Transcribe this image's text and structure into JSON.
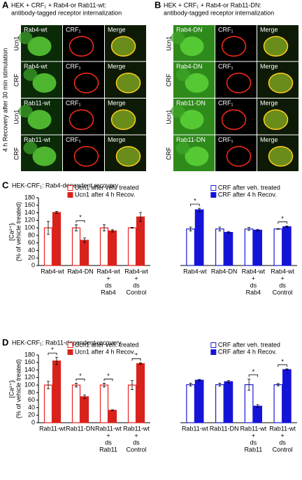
{
  "panels": [
    {
      "label": "A",
      "title": [
        "HEK + CRF₁ + Rab4-or Rab11-wt:",
        "antibody-tagged receptor internalization"
      ],
      "side_label": "4 h Recovery after 30 min stimulation",
      "rows": [
        {
          "group": "Ucn1",
          "channels": [
            "Rab4-wt",
            "CRF₁",
            "Merge"
          ]
        },
        {
          "group": "CRF",
          "channels": [
            "Rab4-wt",
            "CRF₁",
            "Merge"
          ]
        },
        {
          "group": "Ucn1",
          "channels": [
            "Rab11-wt",
            "CRF₁",
            "Merge"
          ]
        },
        {
          "group": "CRF",
          "channels": [
            "Rab11-wt",
            "CRF₁",
            "Merge"
          ]
        }
      ]
    },
    {
      "label": "B",
      "title": [
        "HEK + CRF₁ + Rab4-or Rab11-DN:",
        "antibody-tagged receptor internalization"
      ],
      "rows": [
        {
          "group": "Ucn1",
          "channels": [
            "Rab4-DN",
            "CRF₁",
            "Merge"
          ]
        },
        {
          "group": "CRF",
          "channels": [
            "Rab4-DN",
            "CRF₁",
            "Merge"
          ]
        },
        {
          "group": "Ucn1",
          "channels": [
            "Rab11-DN",
            "CRF₁",
            "Merge"
          ]
        },
        {
          "group": "CRF",
          "channels": [
            "Rab11-DN",
            "CRF₁",
            "Merge"
          ]
        }
      ]
    }
  ],
  "chart_panels": [
    {
      "label": "C",
      "title": "HEK-CRF₁: Rab4-dependent recovery"
    },
    {
      "label": "D",
      "title": "HEK-CRF₁: Rab11-dependent recovery"
    }
  ],
  "chart_data": [
    {
      "type": "bar",
      "ylabel": [
        "[Ca²⁺]ᵢ",
        "(% of vehicle treated)"
      ],
      "ylim": [
        0,
        180
      ],
      "yticks": [
        0,
        20,
        40,
        60,
        80,
        100,
        120,
        140,
        160,
        180
      ],
      "categories": [
        "Rab4-wt",
        "Rab4-DN",
        [
          "Rab4-wt",
          "+",
          "ds",
          "Rab4"
        ],
        [
          "Rab4-wt",
          "+",
          "ds",
          "Control"
        ]
      ],
      "series": [
        {
          "name": "Ucn1 after veh. treated",
          "color": "#e8221f",
          "style": "open",
          "values": [
            100,
            100,
            100,
            100
          ],
          "errors": [
            17,
            8,
            8,
            1
          ]
        },
        {
          "name": "Ucn1 after 4 h Recov.",
          "color": "#d8231c",
          "style": "solid",
          "values": [
            141,
            67,
            92,
            129
          ],
          "errors": [
            3,
            6,
            3,
            12
          ]
        }
      ],
      "significance": [
        null,
        "*",
        null,
        null
      ]
    },
    {
      "type": "bar",
      "ylim": [
        0,
        180
      ],
      "categories": [
        "Rab4-wt",
        "Rab4-DN",
        [
          "Rab4-wt",
          "+",
          "ds",
          "Rab4"
        ],
        [
          "Rab4-wt",
          "+",
          "ds",
          "Control"
        ]
      ],
      "series": [
        {
          "name": "CRF after veh. treated",
          "color": "#1a1adc",
          "style": "open",
          "values": [
            97,
            97,
            97,
            97
          ],
          "errors": [
            5,
            5,
            4,
            1
          ]
        },
        {
          "name": "CRF after 4 h Recov.",
          "color": "#1414d8",
          "style": "solid",
          "values": [
            148,
            88,
            94,
            103
          ],
          "errors": [
            4,
            2,
            2,
            2
          ]
        }
      ],
      "significance": [
        "*",
        null,
        null,
        "*"
      ]
    },
    {
      "type": "bar",
      "ylabel": [
        "[Ca²⁺]ᵢ",
        "(% of vehicle treated)"
      ],
      "ylim": [
        0,
        180
      ],
      "yticks": [
        0,
        20,
        40,
        60,
        80,
        100,
        120,
        140,
        160,
        180
      ],
      "categories": [
        "Rab11-wt",
        "Rab11-DN",
        [
          "Rab11-wt",
          "+",
          "ds",
          "Rab11"
        ],
        [
          "Rab11-wt",
          "+",
          "ds",
          "Control"
        ]
      ],
      "series": [
        {
          "name": "Ucn1 after veh. treated",
          "color": "#e8221f",
          "style": "open",
          "values": [
            100,
            100,
            100,
            100
          ],
          "errors": [
            10,
            5,
            5,
            12
          ]
        },
        {
          "name": "Ucn1 after 4 h Recov.",
          "color": "#d8231c",
          "style": "solid",
          "values": [
            164,
            69,
            33,
            157
          ],
          "errors": [
            10,
            5,
            1,
            2
          ]
        }
      ],
      "significance": [
        "*",
        "*",
        "*",
        "*"
      ]
    },
    {
      "type": "bar",
      "ylim": [
        0,
        180
      ],
      "categories": [
        "Rab11-wt",
        "Rab11-DN",
        [
          "Rab11-wt",
          "+",
          "ds",
          "Rab11"
        ],
        [
          "Rab11-wt",
          "+",
          "ds",
          "Control"
        ]
      ],
      "series": [
        {
          "name": "CRF after veh. treated",
          "color": "#1a1adc",
          "style": "open",
          "values": [
            101,
            101,
            101,
            101
          ],
          "errors": [
            4,
            4,
            15,
            3
          ]
        },
        {
          "name": "CRF after 4 h Recov.",
          "color": "#1414d8",
          "style": "solid",
          "values": [
            113,
            109,
            44,
            141
          ],
          "errors": [
            2,
            3,
            4,
            2
          ]
        }
      ],
      "significance": [
        null,
        null,
        "*",
        "*"
      ]
    }
  ]
}
